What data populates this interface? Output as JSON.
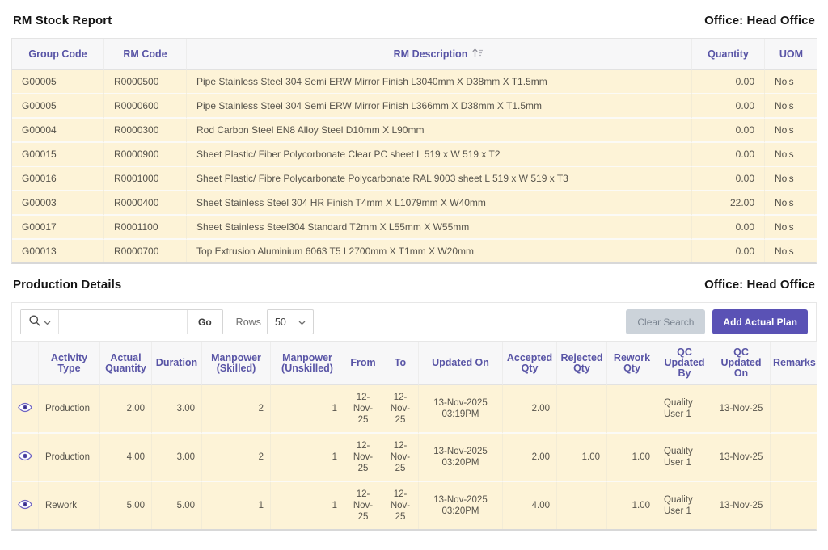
{
  "colors": {
    "accent": "#5a52b5",
    "header-text": "#5955a6",
    "header-bg": "#f7f7f8",
    "row-bg": "#fdf3d7",
    "title-text": "#141414",
    "cell-text": "#56534b",
    "clear-bg": "#ccd3da",
    "clear-text": "#7b8591"
  },
  "icons": {
    "search": "search-icon",
    "search_dropdown": "chevron-down-icon",
    "rows_dropdown": "chevron-down-icon",
    "description_sort": "sort-ascending-icon",
    "row_view": "eye-icon"
  },
  "rm_stock": {
    "title": "RM Stock Report",
    "office_label": "Office: Head Office",
    "columns": {
      "group_code": "Group Code",
      "rm_code": "RM Code",
      "description": "RM Description",
      "quantity": "Quantity",
      "uom": "UOM"
    },
    "rows": [
      {
        "group_code": "G00005",
        "rm_code": "R0000500",
        "description": "Pipe Stainless Steel 304 Semi ERW Mirror Finish L3040mm X D38mm X T1.5mm",
        "quantity": "0.00",
        "uom": "No's"
      },
      {
        "group_code": "G00005",
        "rm_code": "R0000600",
        "description": "Pipe Stainless Steel 304 Semi ERW Mirror Finish L366mm X D38mm X T1.5mm",
        "quantity": "0.00",
        "uom": "No's"
      },
      {
        "group_code": "G00004",
        "rm_code": "R0000300",
        "description": "Rod Carbon Steel EN8 Alloy Steel D10mm X L90mm",
        "quantity": "0.00",
        "uom": "No's"
      },
      {
        "group_code": "G00015",
        "rm_code": "R0000900",
        "description": "Sheet Plastic/ Fiber Polycorbonate Clear PC sheet L 519 x W 519 x T2",
        "quantity": "0.00",
        "uom": "No's"
      },
      {
        "group_code": "G00016",
        "rm_code": "R0001000",
        "description": "Sheet Plastic/ Fibre Polycarbonate Polycarbonate RAL 9003 sheet L 519 x W 519 x T3",
        "quantity": "0.00",
        "uom": "No's"
      },
      {
        "group_code": "G00003",
        "rm_code": "R0000400",
        "description": "Sheet Stainless Steel 304 HR Finish T4mm X L1079mm X W40mm",
        "quantity": "22.00",
        "uom": "No's"
      },
      {
        "group_code": "G00017",
        "rm_code": "R0001100",
        "description": "Sheet Stainless Steel304 Standard T2mm X L55mm X W55mm",
        "quantity": "0.00",
        "uom": "No's"
      },
      {
        "group_code": "G00013",
        "rm_code": "R0000700",
        "description": "Top Extrusion Aluminium 6063 T5 L2700mm X T1mm X W20mm",
        "quantity": "0.00",
        "uom": "No's"
      }
    ]
  },
  "production": {
    "title": "Production Details",
    "office_label": "Office: Head Office",
    "toolbar": {
      "search_placeholder": "",
      "search_value": "",
      "go_label": "Go",
      "rows_label": "Rows",
      "rows_value": "50",
      "clear_search_label": "Clear Search",
      "add_actual_plan_label": "Add Actual Plan"
    },
    "columns": {
      "activity_type": "Activity Type",
      "actual_quantity": "Actual Quantity",
      "duration": "Duration",
      "manpower_skilled": "Manpower (Skilled)",
      "manpower_unskilled": "Manpower (Unskilled)",
      "from": "From",
      "to": "To",
      "updated_on": "Updated On",
      "accepted_qty": "Accepted Qty",
      "rejected_qty": "Rejected Qty",
      "rework_qty": "Rework Qty",
      "qc_updated_by": "QC Updated By",
      "qc_updated_on": "QC Updated On",
      "remarks": "Remarks"
    },
    "rows": [
      {
        "activity_type": "Production",
        "actual_quantity": "2.00",
        "duration": "3.00",
        "manpower_skilled": "2",
        "manpower_unskilled": "1",
        "from": "12-Nov-25",
        "to": "12-Nov-25",
        "updated_on": "13-Nov-2025 03:19PM",
        "accepted_qty": "2.00",
        "rejected_qty": "",
        "rework_qty": "",
        "qc_updated_by": "Quality User 1",
        "qc_updated_on": "13-Nov-25",
        "remarks": ""
      },
      {
        "activity_type": "Production",
        "actual_quantity": "4.00",
        "duration": "3.00",
        "manpower_skilled": "2",
        "manpower_unskilled": "1",
        "from": "12-Nov-25",
        "to": "12-Nov-25",
        "updated_on": "13-Nov-2025 03:20PM",
        "accepted_qty": "2.00",
        "rejected_qty": "1.00",
        "rework_qty": "1.00",
        "qc_updated_by": "Quality User 1",
        "qc_updated_on": "13-Nov-25",
        "remarks": ""
      },
      {
        "activity_type": "Rework",
        "actual_quantity": "5.00",
        "duration": "5.00",
        "manpower_skilled": "1",
        "manpower_unskilled": "1",
        "from": "12-Nov-25",
        "to": "12-Nov-25",
        "updated_on": "13-Nov-2025 03:20PM",
        "accepted_qty": "4.00",
        "rejected_qty": "",
        "rework_qty": "1.00",
        "qc_updated_by": "Quality User 1",
        "qc_updated_on": "13-Nov-25",
        "remarks": ""
      }
    ]
  }
}
